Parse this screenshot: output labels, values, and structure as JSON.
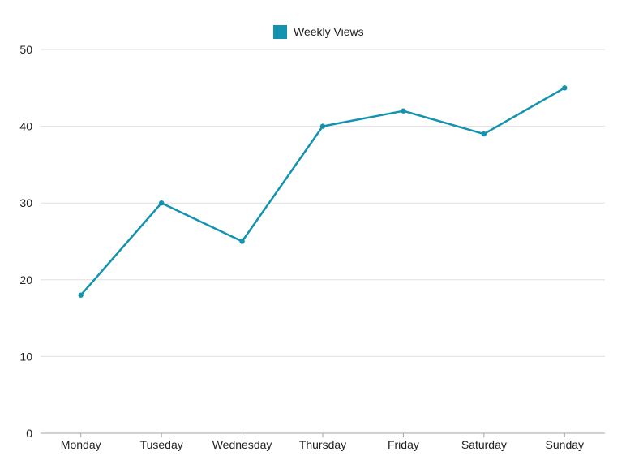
{
  "chart_data": {
    "type": "line",
    "title": "",
    "xlabel": "",
    "ylabel": "",
    "categories": [
      "Monday",
      "Tuseday",
      "Wednesday",
      "Thursday",
      "Friday",
      "Saturday",
      "Sunday"
    ],
    "series": [
      {
        "name": "Weekly Views",
        "values": [
          18,
          30,
          25,
          40,
          42,
          39,
          45
        ],
        "color": "#1393b0"
      }
    ],
    "ylim": [
      0,
      50
    ],
    "yticks": [
      "0",
      "10",
      "20",
      "30",
      "40",
      "50"
    ],
    "grid": true,
    "legend": "top-center",
    "colors": {
      "grid": "#e0e0e0",
      "axis": "#a6a6a6",
      "text": "#222222"
    }
  }
}
